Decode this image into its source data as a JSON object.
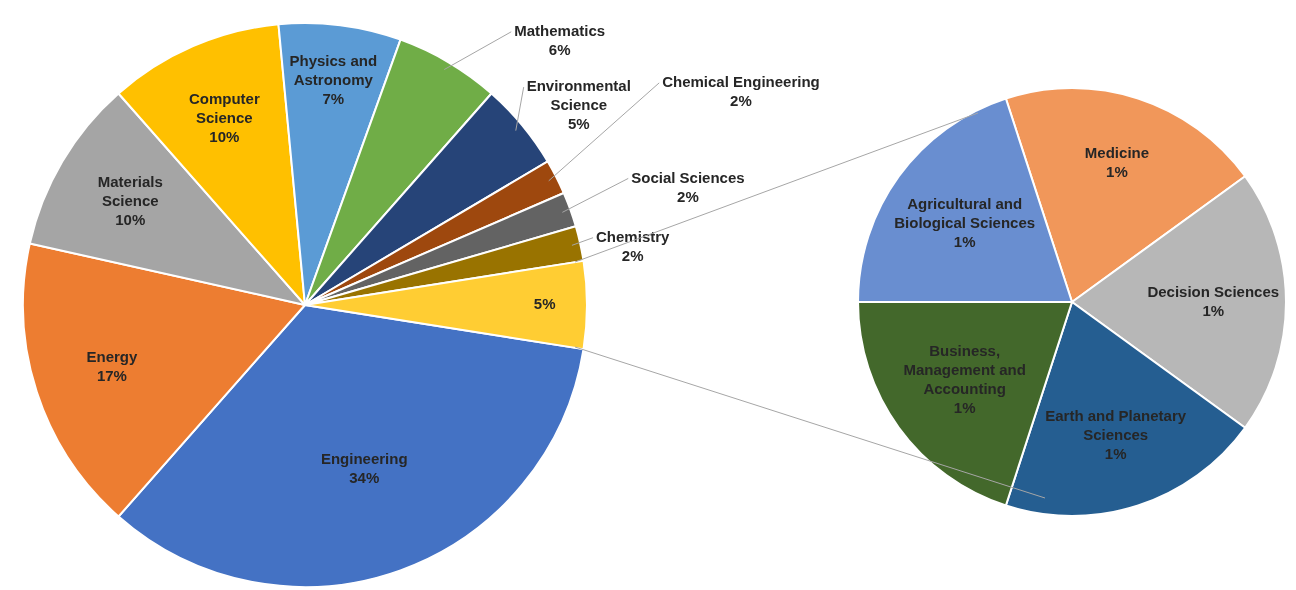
{
  "chart_data": [
    {
      "type": "pie",
      "categories": [
        "Engineering",
        "Energy",
        "Materials Science",
        "Computer Science",
        "Physics and Astronomy",
        "Mathematics",
        "Environmental Science",
        "Chemical Engineering",
        "Social Sciences",
        "Chemistry",
        null
      ],
      "values": [
        34,
        17,
        10,
        10,
        7,
        6,
        5,
        2,
        2,
        2,
        5
      ],
      "value_labels": [
        "34%",
        "17%",
        "10%",
        "10%",
        "7%",
        "6%",
        "5%",
        "2%",
        "2%",
        "2%",
        "5%"
      ],
      "colors": [
        "#4472c4",
        "#ed7d31",
        "#a5a5a5",
        "#ffc000",
        "#5b9bd5",
        "#70ad47",
        "#264478",
        "#9e480e",
        "#636363",
        "#997300",
        "#ffcd33"
      ],
      "legend": false
    },
    {
      "type": "pie",
      "categories": [
        "Medicine",
        "Decision Sciences",
        "Earth and Planetary Sciences",
        "Business, Management and Accounting",
        "Agricultural and Biological Sciences"
      ],
      "values": [
        1,
        1,
        1,
        1,
        1
      ],
      "value_labels": [
        "1%",
        "1%",
        "1%",
        "1%",
        "1%"
      ],
      "colors": [
        "#f1975a",
        "#b7b7b7",
        "#255e91",
        "#43682b",
        "#698ed0"
      ],
      "legend": false
    }
  ]
}
